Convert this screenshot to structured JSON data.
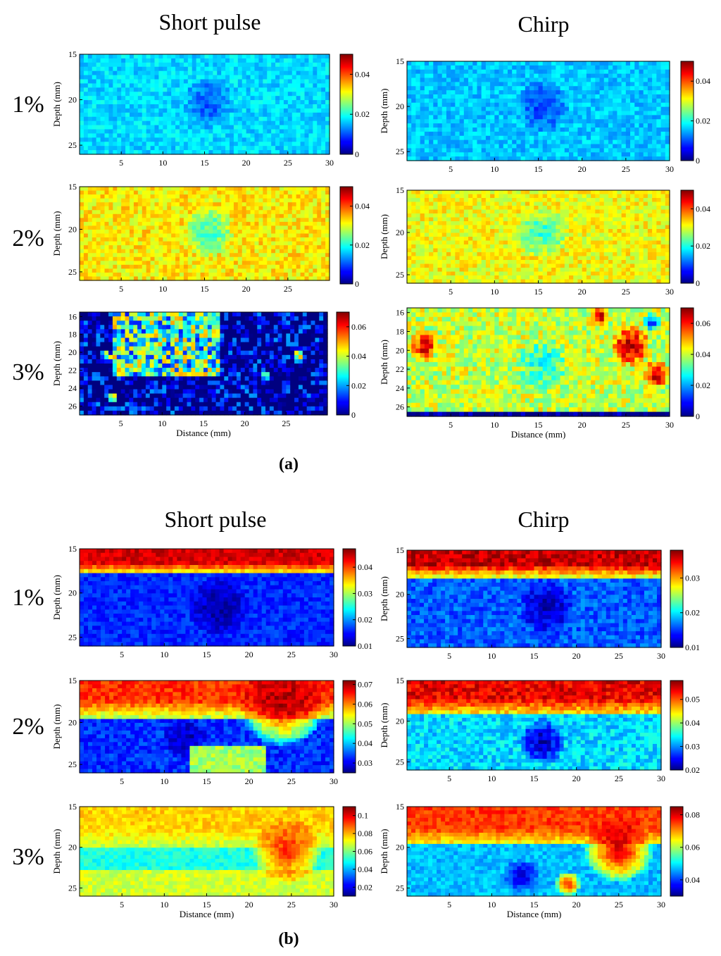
{
  "figure": {
    "panel_a_label": "(a)",
    "panel_b_label": "(b)"
  },
  "chart_data": [
    {
      "type": "heatmap",
      "panel": "(a)",
      "title": "Short pulse",
      "row_label": "1%",
      "xlabel": "",
      "ylabel": "Depth (mm)",
      "xlim": [
        0,
        30
      ],
      "ylim": [
        15,
        26
      ],
      "xticks": [
        5,
        10,
        15,
        20,
        25,
        30
      ],
      "yticks": [
        15,
        20,
        25
      ],
      "clim": [
        0,
        0.05
      ],
      "colorbar_ticks": [
        0,
        0.02,
        0.04
      ],
      "colorbar_labels": [
        "0",
        "0.02",
        "0.04"
      ],
      "field": {
        "base": 0.017,
        "noise": 0.003,
        "features": [
          {
            "type": "disc",
            "x": 15.5,
            "y": 20.3,
            "r": 3.0,
            "value": 0.01
          }
        ]
      }
    },
    {
      "type": "heatmap",
      "panel": "(a)",
      "title": "Chirp",
      "row_label": "",
      "xlabel": "",
      "ylabel": "Depth (mm)",
      "xlim": [
        0,
        30
      ],
      "ylim": [
        15,
        26
      ],
      "xticks": [
        5,
        10,
        15,
        20,
        25,
        30
      ],
      "yticks": [
        15,
        20,
        25
      ],
      "clim": [
        0,
        0.05
      ],
      "colorbar_ticks": [
        0,
        0.02,
        0.04
      ],
      "colorbar_labels": [
        "0",
        "0.02",
        "0.04"
      ],
      "field": {
        "base": 0.016,
        "noise": 0.003,
        "features": [
          {
            "type": "disc",
            "x": 15.5,
            "y": 20.0,
            "r": 3.0,
            "value": 0.009
          }
        ]
      }
    },
    {
      "type": "heatmap",
      "panel": "(a)",
      "title": "",
      "row_label": "2%",
      "xlabel": "",
      "ylabel": "Depth (mm)",
      "xlim": [
        0,
        30
      ],
      "ylim": [
        15,
        26
      ],
      "xticks": [
        5,
        10,
        15,
        20,
        25
      ],
      "yticks": [
        15,
        20,
        25
      ],
      "clim": [
        0,
        0.05
      ],
      "colorbar_ticks": [
        0,
        0.02,
        0.04
      ],
      "colorbar_labels": [
        "0",
        "0.02",
        "0.04"
      ],
      "field": {
        "base": 0.032,
        "noise": 0.004,
        "features": [
          {
            "type": "disc",
            "x": 15.5,
            "y": 20.3,
            "r": 3.0,
            "value": 0.021
          }
        ]
      }
    },
    {
      "type": "heatmap",
      "panel": "(a)",
      "title": "",
      "row_label": "",
      "xlabel": "",
      "ylabel": "Depth (mm)",
      "xlim": [
        0,
        30
      ],
      "ylim": [
        15,
        26
      ],
      "xticks": [
        5,
        10,
        15,
        20,
        25,
        30
      ],
      "yticks": [
        15,
        20,
        25
      ],
      "clim": [
        0,
        0.05
      ],
      "colorbar_ticks": [
        0,
        0.02,
        0.04
      ],
      "colorbar_labels": [
        "0",
        "0.02",
        "0.04"
      ],
      "field": {
        "base": 0.031,
        "noise": 0.004,
        "features": [
          {
            "type": "disc",
            "x": 15.5,
            "y": 20.0,
            "r": 3.0,
            "value": 0.021
          }
        ]
      }
    },
    {
      "type": "heatmap",
      "panel": "(a)",
      "title": "",
      "row_label": "3%",
      "xlabel": "Distance (mm)",
      "ylabel": "Depth (mm)",
      "xlim": [
        0,
        30
      ],
      "ylim": [
        15.5,
        27
      ],
      "xticks": [
        5,
        10,
        15,
        20,
        25
      ],
      "yticks": [
        16,
        18,
        20,
        22,
        24,
        26
      ],
      "clim": [
        0,
        0.07
      ],
      "colorbar_ticks": [
        0,
        0.02,
        0.04,
        0.06
      ],
      "colorbar_labels": [
        "0",
        "0.02",
        "0.04",
        "0.06"
      ],
      "field": {
        "base": 0.03,
        "noise": 0.02,
        "features": [
          {
            "type": "rect",
            "x0": 0,
            "x1": 30,
            "y0": 22.5,
            "y1": 27,
            "value": 0.0
          },
          {
            "type": "rect",
            "x0": 0,
            "x1": 4,
            "y0": 15.5,
            "y1": 27,
            "value": 0.0
          },
          {
            "type": "rect",
            "x0": 17,
            "x1": 30,
            "y0": 15.5,
            "y1": 27,
            "value": 0.0
          },
          {
            "type": "disc",
            "x": 3.5,
            "y": 20.5,
            "r": 0.6,
            "value": 0.065
          },
          {
            "type": "disc",
            "x": 4.0,
            "y": 25.0,
            "r": 0.6,
            "value": 0.065
          },
          {
            "type": "disc",
            "x": 26.5,
            "y": 20.5,
            "r": 0.7,
            "value": 0.065
          },
          {
            "type": "disc",
            "x": 22.5,
            "y": 22.5,
            "r": 0.5,
            "value": 0.06
          }
        ]
      }
    },
    {
      "type": "heatmap",
      "panel": "(a)",
      "title": "",
      "row_label": "",
      "xlabel": "Distance (mm)",
      "ylabel": "Depth (mm)",
      "xlim": [
        0,
        30
      ],
      "ylim": [
        15.5,
        27
      ],
      "xticks": [
        5,
        10,
        15,
        20,
        25,
        30
      ],
      "yticks": [
        16,
        18,
        20,
        22,
        24,
        26
      ],
      "clim": [
        0,
        0.07
      ],
      "colorbar_ticks": [
        0,
        0.02,
        0.04,
        0.06
      ],
      "colorbar_labels": [
        "0",
        "0.02",
        "0.04",
        "0.06"
      ],
      "field": {
        "base": 0.04,
        "noise": 0.008,
        "features": [
          {
            "type": "disc",
            "x": 15.5,
            "y": 21.5,
            "r": 3.0,
            "value": 0.028
          },
          {
            "type": "rect",
            "x0": 0,
            "x1": 30,
            "y0": 26.3,
            "y1": 27,
            "value": 0.0
          },
          {
            "type": "disc",
            "x": 2.0,
            "y": 19.5,
            "r": 1.6,
            "value": 0.065
          },
          {
            "type": "disc",
            "x": 25.5,
            "y": 19.5,
            "r": 2.2,
            "value": 0.068
          },
          {
            "type": "disc",
            "x": 28.5,
            "y": 22.5,
            "r": 1.5,
            "value": 0.068
          },
          {
            "type": "disc",
            "x": 22.0,
            "y": 16.5,
            "r": 1.2,
            "value": 0.065
          },
          {
            "type": "disc",
            "x": 28.0,
            "y": 17.0,
            "r": 1.0,
            "value": 0.01
          }
        ]
      }
    },
    {
      "type": "heatmap",
      "panel": "(b)",
      "title": "Short pulse",
      "row_label": "1%",
      "xlabel": "",
      "ylabel": "Depth (mm)",
      "xlim": [
        0,
        30
      ],
      "ylim": [
        15,
        26
      ],
      "xticks": [
        5,
        10,
        15,
        20,
        25,
        30
      ],
      "yticks": [
        15,
        20,
        25
      ],
      "clim": [
        0.01,
        0.047
      ],
      "colorbar_ticks": [
        0.01,
        0.02,
        0.03,
        0.04
      ],
      "colorbar_labels": [
        "0.01",
        "0.02",
        "0.03",
        "0.04"
      ],
      "field": {
        "base": 0.016,
        "noise": 0.002,
        "band": {
          "y_top": 15,
          "y_mid": 17.8,
          "value": 0.044
        },
        "features": [
          {
            "type": "disc",
            "x": 16.5,
            "y": 21.5,
            "r": 3.5,
            "value": 0.011
          }
        ]
      }
    },
    {
      "type": "heatmap",
      "panel": "(b)",
      "title": "Chirp",
      "row_label": "",
      "xlabel": "",
      "ylabel": "Depth (mm)",
      "xlim": [
        0,
        30
      ],
      "ylim": [
        15,
        26
      ],
      "xticks": [
        5,
        10,
        15,
        20,
        25,
        30
      ],
      "yticks": [
        15,
        20,
        25
      ],
      "clim": [
        0.01,
        0.038
      ],
      "colorbar_ticks": [
        0.01,
        0.02,
        0.03
      ],
      "colorbar_labels": [
        "0.01",
        "0.02",
        "0.03"
      ],
      "field": {
        "base": 0.016,
        "noise": 0.002,
        "band": {
          "y_top": 15,
          "y_mid": 18.0,
          "value": 0.036
        },
        "features": [
          {
            "type": "disc",
            "x": 16.5,
            "y": 21.5,
            "r": 3.2,
            "value": 0.011
          }
        ]
      }
    },
    {
      "type": "heatmap",
      "panel": "(b)",
      "title": "",
      "row_label": "2%",
      "xlabel": "",
      "ylabel": "Depth (mm)",
      "xlim": [
        0,
        30
      ],
      "ylim": [
        15,
        26
      ],
      "xticks": [
        5,
        10,
        15,
        20,
        25,
        30
      ],
      "yticks": [
        15,
        20,
        25
      ],
      "clim": [
        0.025,
        0.072
      ],
      "colorbar_ticks": [
        0.03,
        0.04,
        0.05,
        0.06,
        0.07
      ],
      "colorbar_labels": [
        "0.03",
        "0.04",
        "0.05",
        "0.06",
        "0.07"
      ],
      "field": {
        "base": 0.033,
        "noise": 0.003,
        "band": {
          "y_top": 15,
          "y_mid": 19.5,
          "value": 0.064
        },
        "features": [
          {
            "type": "disc",
            "x": 12.5,
            "y": 22.0,
            "r": 2.5,
            "value": 0.027
          },
          {
            "type": "rect",
            "x0": 13,
            "x1": 22,
            "y0": 23,
            "y1": 26,
            "value": 0.05
          },
          {
            "type": "disc",
            "x": 24,
            "y": 17.8,
            "r": 5.0,
            "value": 0.07
          }
        ]
      }
    },
    {
      "type": "heatmap",
      "panel": "(b)",
      "title": "",
      "row_label": "",
      "xlabel": "",
      "ylabel": "Depth (mm)",
      "xlim": [
        0,
        30
      ],
      "ylim": [
        15,
        26
      ],
      "xticks": [
        5,
        10,
        15,
        20,
        25,
        30
      ],
      "yticks": [
        15,
        20,
        25
      ],
      "clim": [
        0.02,
        0.058
      ],
      "colorbar_ticks": [
        0.02,
        0.03,
        0.04,
        0.05
      ],
      "colorbar_labels": [
        "0.02",
        "0.03",
        "0.04",
        "0.05"
      ],
      "field": {
        "base": 0.033,
        "noise": 0.003,
        "band": {
          "y_top": 15,
          "y_mid": 19.0,
          "value": 0.054
        },
        "features": [
          {
            "type": "disc",
            "x": 16.0,
            "y": 22.5,
            "r": 2.8,
            "value": 0.021
          }
        ]
      }
    },
    {
      "type": "heatmap",
      "panel": "(b)",
      "title": "",
      "row_label": "3%",
      "xlabel": "Distance (mm)",
      "ylabel": "Depth (mm)",
      "xlim": [
        0,
        30
      ],
      "ylim": [
        15,
        26
      ],
      "xticks": [
        5,
        10,
        15,
        20,
        25,
        30
      ],
      "yticks": [
        15,
        20,
        25
      ],
      "clim": [
        0.01,
        0.11
      ],
      "colorbar_ticks": [
        0.02,
        0.04,
        0.06,
        0.08,
        0.1
      ],
      "colorbar_labels": [
        "0.02",
        "0.04",
        "0.06",
        "0.08",
        "0.1"
      ],
      "field": {
        "base": 0.05,
        "noise": 0.005,
        "band": {
          "y_top": 15,
          "y_mid": 20.0,
          "value": 0.077
        },
        "features": [
          {
            "type": "rect",
            "x0": 0,
            "x1": 30,
            "y0": 23,
            "y1": 26,
            "value": 0.068
          },
          {
            "type": "disc",
            "x": 24.5,
            "y": 20.5,
            "r": 4.0,
            "value": 0.095
          }
        ]
      }
    },
    {
      "type": "heatmap",
      "panel": "(b)",
      "title": "",
      "row_label": "",
      "xlabel": "Distance (mm)",
      "ylabel": "Depth (mm)",
      "xlim": [
        0,
        30
      ],
      "ylim": [
        15,
        26
      ],
      "xticks": [
        5,
        10,
        15,
        20,
        25,
        30
      ],
      "yticks": [
        15,
        20,
        25
      ],
      "clim": [
        0.03,
        0.085
      ],
      "colorbar_ticks": [
        0.04,
        0.06,
        0.08
      ],
      "colorbar_labels": [
        "0.04",
        "0.06",
        "0.08"
      ],
      "field": {
        "base": 0.047,
        "noise": 0.003,
        "band": {
          "y_top": 15,
          "y_mid": 19.8,
          "value": 0.075
        },
        "features": [
          {
            "type": "disc",
            "x": 13.5,
            "y": 23.5,
            "r": 2.0,
            "value": 0.033
          },
          {
            "type": "disc",
            "x": 19.0,
            "y": 24.5,
            "r": 1.5,
            "value": 0.08
          },
          {
            "type": "disc",
            "x": 25.0,
            "y": 20.3,
            "r": 4.0,
            "value": 0.082
          }
        ]
      }
    }
  ]
}
